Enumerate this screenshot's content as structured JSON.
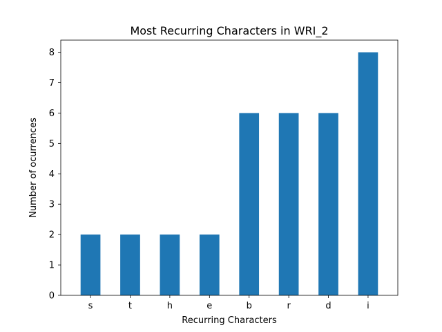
{
  "chart_data": {
    "type": "bar",
    "title": "Most Recurring Characters in WRI_2",
    "xlabel": "Recurring Characters",
    "ylabel": "Number of ocurrences",
    "categories": [
      "s",
      "t",
      "h",
      "e",
      "b",
      "r",
      "d",
      "i"
    ],
    "values": [
      2,
      2,
      2,
      2,
      6,
      6,
      6,
      8
    ],
    "ylim": [
      0,
      8.4
    ],
    "yticks": [
      0,
      1,
      2,
      3,
      4,
      5,
      6,
      7,
      8
    ],
    "bar_color": "#1f77b4",
    "grid": false,
    "legend": "none"
  }
}
